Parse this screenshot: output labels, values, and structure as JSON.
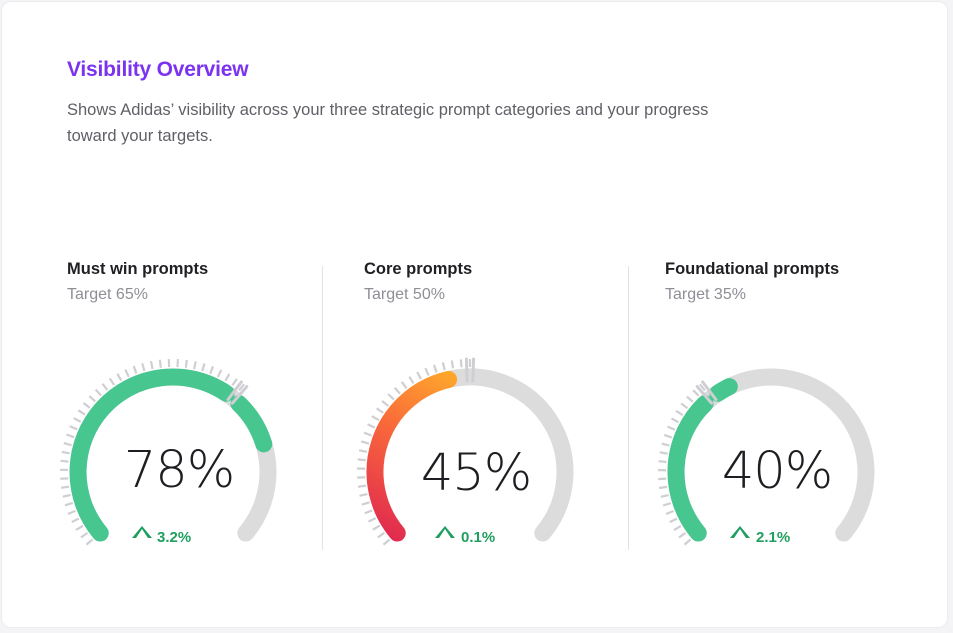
{
  "header": {
    "title": "Visibility Overview",
    "description": "Shows Adidas’ visibility across your three strategic prompt categories and your progress toward your targets."
  },
  "colors": {
    "accent": "#7b33f0",
    "track": "#dcdcdc",
    "ticks": "#cfcfd3",
    "green": "#47c68f",
    "delta_green": "#1f9e5f",
    "red": "#e02850",
    "orange": "#f96a3a",
    "amber": "#ffb02a"
  },
  "gauges": [
    {
      "title": "Must win prompts",
      "target_label": "Target 65%",
      "value_label": "78%",
      "delta_label": "3.2%",
      "value": 78,
      "target": 65,
      "style": "green"
    },
    {
      "title": "Core prompts",
      "target_label": "Target 50%",
      "value_label": "45%",
      "delta_label": "0.1%",
      "value": 45,
      "target": 50,
      "style": "heat"
    },
    {
      "title": "Foundational prompts",
      "target_label": "Target 35%",
      "value_label": "40%",
      "delta_label": "2.1%",
      "value": 40,
      "target": 35,
      "style": "green"
    }
  ]
}
